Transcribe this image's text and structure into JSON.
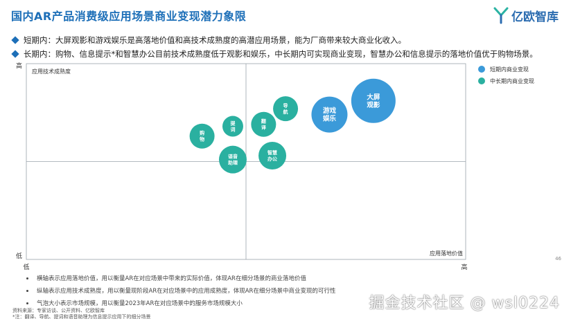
{
  "header": {
    "title": "国内AR产品消费级应用场景商业变现潜力象限",
    "logo_text": "亿欧智库"
  },
  "bullets": [
    "短期内：大屏观影和游戏娱乐是高落地价值和高技术成熟度的高潜应用场景，能为厂商带来较大商业化收入。",
    "长期内：购物、信息提示*和智慧办公目前技术成熟度低于观影和娱乐，中长期内可实现商业变现，智慧办公和信息提示的落地价值优于购物场景。"
  ],
  "chart_data": {
    "type": "scatter",
    "xlabel": "应用落地价值",
    "ylabel": "应用技术成熟度",
    "x_ticks": [
      "低",
      "高"
    ],
    "y_ticks": [
      "低",
      "高"
    ],
    "xlim": [
      0,
      100
    ],
    "ylim": [
      0,
      100
    ],
    "quadrant_split": [
      50,
      50
    ],
    "legend": [
      {
        "name": "短期内商业变现",
        "color": "#3b9ad9"
      },
      {
        "name": "中长期内商业变现",
        "color": "#2ab0a0"
      }
    ],
    "series": [
      {
        "name": "短期内商业变现",
        "color": "#3b9ad9",
        "points": [
          {
            "label": "大屏\n观影",
            "x": 79,
            "y": 81,
            "size": 32
          },
          {
            "label": "游戏\n娱乐",
            "x": 69,
            "y": 74,
            "size": 26
          }
        ]
      },
      {
        "name": "中长期内商业变现",
        "color": "#2ab0a0",
        "points": [
          {
            "label": "导\n航",
            "x": 59,
            "y": 77,
            "size": 18
          },
          {
            "label": "翻\n译",
            "x": 54,
            "y": 69,
            "size": 18
          },
          {
            "label": "提\n词",
            "x": 47,
            "y": 68,
            "size": 15
          },
          {
            "label": "购\n物",
            "x": 40,
            "y": 63,
            "size": 18
          },
          {
            "label": "智慧\n办公",
            "x": 56,
            "y": 53,
            "size": 20
          },
          {
            "label": "语音\n助理",
            "x": 47,
            "y": 51,
            "size": 20
          }
        ]
      }
    ]
  },
  "notes": [
    "横轴表示应用落地价值，用以衡量AR在对应场景中带来的实际价值，体现AR在细分场景的商业落地价值",
    "纵轴表示应用技术成熟度，用以衡量现阶段AR在对应场景中的应用成熟度，体现AR在细分场景中商业变现的可行性",
    "气泡大小表示市场规模，用以衡量2023年AR在对应场景中的服务市场规模大小"
  ],
  "source": {
    "line1": "资料来源：专家访谈、公开资料、亿欧智库",
    "line2": "*注：翻译、导航、提词和语音助理为信息提示应用下的细分场景"
  },
  "page_number": "46",
  "watermark": "掘金技术社区 @ wsl0224"
}
